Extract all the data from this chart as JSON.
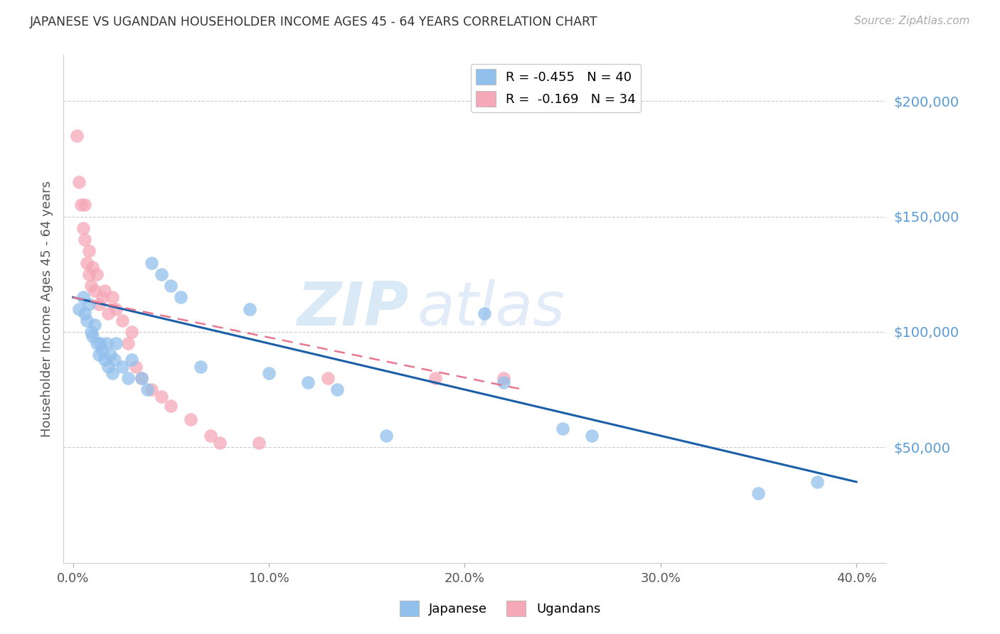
{
  "title": "JAPANESE VS UGANDAN HOUSEHOLDER INCOME AGES 45 - 64 YEARS CORRELATION CHART",
  "source": "Source: ZipAtlas.com",
  "ylabel": "Householder Income Ages 45 - 64 years",
  "xlabel_ticks": [
    "0.0%",
    "10.0%",
    "20.0%",
    "30.0%",
    "40.0%"
  ],
  "xlabel_vals": [
    0.0,
    0.1,
    0.2,
    0.3,
    0.4
  ],
  "ytick_labels": [
    "$50,000",
    "$100,000",
    "$150,000",
    "$200,000"
  ],
  "ytick_vals": [
    50000,
    100000,
    150000,
    200000
  ],
  "ylim": [
    0,
    220000
  ],
  "xlim": [
    -0.005,
    0.415
  ],
  "legend_entries": [
    {
      "label": "R = -0.455   N = 40",
      "color": "#7eb3e8"
    },
    {
      "label": "R =  -0.169   N = 34",
      "color": "#f4a0b0"
    }
  ],
  "japanese_x": [
    0.003,
    0.005,
    0.006,
    0.007,
    0.008,
    0.009,
    0.01,
    0.011,
    0.012,
    0.013,
    0.014,
    0.015,
    0.016,
    0.017,
    0.018,
    0.019,
    0.02,
    0.021,
    0.022,
    0.025,
    0.028,
    0.03,
    0.035,
    0.038,
    0.04,
    0.045,
    0.05,
    0.055,
    0.065,
    0.09,
    0.1,
    0.12,
    0.135,
    0.16,
    0.21,
    0.22,
    0.25,
    0.265,
    0.35,
    0.38
  ],
  "japanese_y": [
    110000,
    115000,
    108000,
    105000,
    112000,
    100000,
    98000,
    103000,
    95000,
    90000,
    95000,
    92000,
    88000,
    95000,
    85000,
    90000,
    82000,
    88000,
    95000,
    85000,
    80000,
    88000,
    80000,
    75000,
    130000,
    125000,
    120000,
    115000,
    85000,
    110000,
    82000,
    78000,
    75000,
    55000,
    108000,
    78000,
    58000,
    55000,
    30000,
    35000
  ],
  "ugandan_x": [
    0.002,
    0.003,
    0.004,
    0.005,
    0.006,
    0.006,
    0.007,
    0.008,
    0.008,
    0.009,
    0.01,
    0.011,
    0.012,
    0.013,
    0.015,
    0.016,
    0.018,
    0.02,
    0.022,
    0.025,
    0.028,
    0.03,
    0.032,
    0.035,
    0.04,
    0.045,
    0.05,
    0.06,
    0.07,
    0.075,
    0.095,
    0.13,
    0.185,
    0.22
  ],
  "ugandan_y": [
    185000,
    165000,
    155000,
    145000,
    140000,
    155000,
    130000,
    135000,
    125000,
    120000,
    128000,
    118000,
    125000,
    112000,
    115000,
    118000,
    108000,
    115000,
    110000,
    105000,
    95000,
    100000,
    85000,
    80000,
    75000,
    72000,
    68000,
    62000,
    55000,
    52000,
    52000,
    80000,
    80000,
    80000
  ],
  "japanese_color": "#92c0ec",
  "ugandan_color": "#f5a8b8",
  "japanese_line_color": "#1a5fa8",
  "ugandan_line_color": "#e87890",
  "watermark_zip": "ZIP",
  "watermark_atlas": "atlas",
  "background_color": "#ffffff",
  "grid_color": "#cccccc",
  "jp_line_x": [
    0.0,
    0.4
  ],
  "jp_line_y": [
    115000,
    35000
  ],
  "ug_line_x": [
    0.0,
    0.23
  ],
  "ug_line_y": [
    115000,
    75000
  ]
}
